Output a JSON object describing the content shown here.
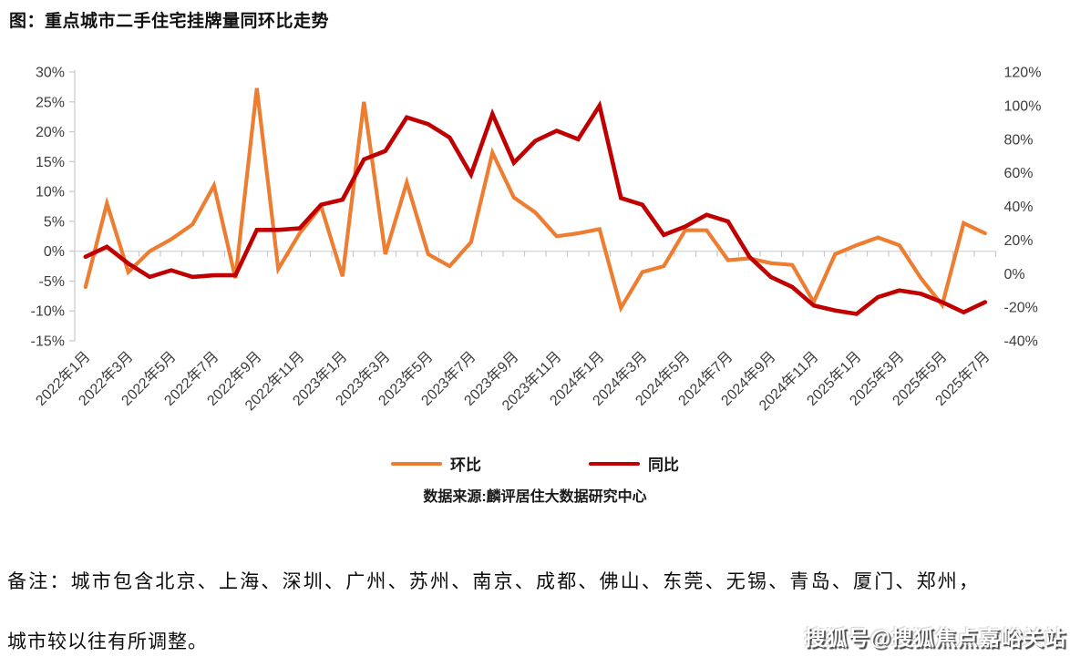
{
  "title": "图：重点城市二手住宅挂牌量同环比走势",
  "source": "数据来源:麟评居住大数据研究中心",
  "note_line1": "备注：城市包含北京、上海、深圳、广州、苏州、南京、成都、佛山、东莞、无锡、青岛、厦门、郑州，",
  "note_line2": "城市较以往有所调整。",
  "watermark": "搜狐号@搜狐焦点嘉峪关站",
  "legend": {
    "items": [
      {
        "label": "环比",
        "color": "#ED7D31"
      },
      {
        "label": "同比",
        "color": "#C00000"
      }
    ]
  },
  "chart_data": {
    "type": "line",
    "title": "图：重点城市二手住宅挂牌量同环比走势",
    "grid": "zero-line-only",
    "legend_position": "bottom",
    "x_tick_label_every": 2,
    "x": [
      "2022年1月",
      "2022年2月",
      "2022年3月",
      "2022年4月",
      "2022年5月",
      "2022年6月",
      "2022年7月",
      "2022年8月",
      "2022年9月",
      "2022年10月",
      "2022年11月",
      "2022年12月",
      "2023年1月",
      "2023年2月",
      "2023年3月",
      "2023年4月",
      "2023年5月",
      "2023年6月",
      "2023年7月",
      "2023年8月",
      "2023年9月",
      "2023年10月",
      "2023年11月",
      "2023年12月",
      "2024年1月",
      "2024年2月",
      "2024年3月",
      "2024年4月",
      "2024年5月",
      "2024年6月",
      "2024年7月",
      "2024年8月",
      "2024年9月",
      "2024年10月",
      "2024年11月",
      "2024年12月",
      "2025年1月",
      "2025年2月",
      "2025年3月",
      "2025年4月",
      "2025年5月",
      "2025年6月",
      "2025年7月"
    ],
    "left_axis": {
      "label": "环比",
      "min": -15,
      "max": 30,
      "tick_step": 5,
      "unit": "%",
      "ticks": [
        "30%",
        "25%",
        "20%",
        "15%",
        "10%",
        "5%",
        "0%",
        "-5%",
        "-10%",
        "-15%"
      ]
    },
    "right_axis": {
      "label": "同比",
      "min": -40,
      "max": 120,
      "tick_step": 20,
      "unit": "%",
      "ticks": [
        "120%",
        "100%",
        "80%",
        "60%",
        "40%",
        "20%",
        "0%",
        "-20%",
        "-40%"
      ]
    },
    "series": [
      {
        "name": "环比",
        "axis": "left",
        "color": "#ED7D31",
        "stroke_width": 4.2,
        "values": [
          -6,
          8,
          -3.5,
          0,
          2,
          4.5,
          11,
          -4.5,
          27.3,
          -3,
          3,
          7.5,
          -4.2,
          25,
          -0.5,
          11.5,
          -0.5,
          -2.5,
          1.5,
          16.5,
          9,
          6.5,
          2.5,
          3,
          3.7,
          -9.5,
          -3.5,
          -2.5,
          3.5,
          3.5,
          -1.5,
          -1.2,
          -2,
          -2.3,
          -8.5,
          -0.5,
          1,
          2.3,
          1,
          -4.5,
          -9,
          4.7,
          3
        ]
      },
      {
        "name": "同比",
        "axis": "right",
        "color": "#C00000",
        "stroke_width": 4.6,
        "values": [
          10,
          16,
          6,
          -2,
          2,
          -2,
          -1,
          -1,
          26,
          26,
          27,
          41,
          44,
          68,
          73,
          93,
          89,
          81,
          59,
          95,
          66,
          79,
          85,
          80,
          100,
          45,
          41,
          23,
          28,
          35,
          31,
          10,
          -2,
          -8,
          -19,
          -22,
          -24,
          -14,
          -10,
          -12,
          -17,
          -23,
          -17
        ]
      }
    ]
  }
}
